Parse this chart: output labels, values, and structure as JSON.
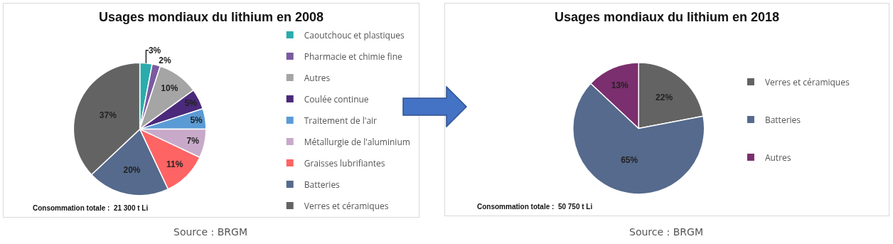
{
  "chart_data": [
    {
      "type": "pie",
      "title": "Usages mondiaux du lithium en 2008",
      "categories": [
        "Caoutchouc et plastiques",
        "Pharmacie et chimie fine",
        "Autres",
        "Coulée continue",
        "Traitement de l'air",
        "Métallurgie de l'aluminium",
        "Graisses lubrifiantes",
        "Batteries",
        "Verres et céramiques"
      ],
      "values": [
        3,
        2,
        10,
        5,
        5,
        7,
        11,
        20,
        37
      ],
      "colors": [
        "#2bacac",
        "#7a5aa0",
        "#a5a5a5",
        "#4b2a7b",
        "#5b9bd5",
        "#c9a9c9",
        "#fe6464",
        "#556a8c",
        "#636363"
      ],
      "value_labels": [
        "3%",
        "2%",
        "10%",
        "5%",
        "5%",
        "7%",
        "11%",
        "20%",
        "37%"
      ],
      "legend": "right",
      "annotations": [
        "Consommation totale :  21 300 t Li",
        "Source : BRGM"
      ]
    },
    {
      "type": "pie",
      "title": "Usages mondiaux du lithium en 2018",
      "categories": [
        "Verres et céramiques",
        "Batteries",
        "Autres"
      ],
      "values": [
        22,
        65,
        13
      ],
      "colors": [
        "#636363",
        "#556a8c",
        "#7b2f6e"
      ],
      "value_labels": [
        "22%",
        "65%",
        "13%"
      ],
      "legend": "right",
      "annotations": [
        "Consommation totale :  50 750 t Li",
        "Source : BRGM"
      ]
    }
  ]
}
